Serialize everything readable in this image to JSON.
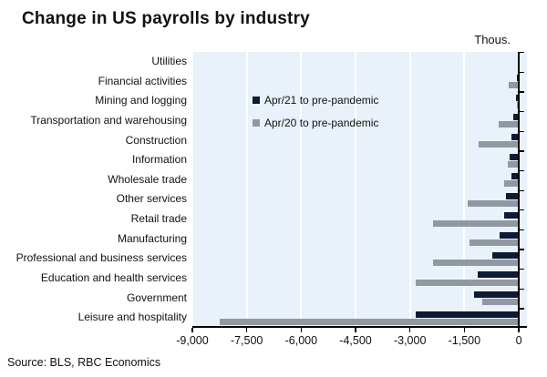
{
  "chart_data": {
    "type": "bar",
    "orientation": "horizontal",
    "title": "Change in US payrolls by industry",
    "unit_label": "Thous.",
    "source_note": "Source: BLS, RBC Economics",
    "categories": [
      "Utilities",
      "Financial activities",
      "Mining and logging",
      "Transportation and warehousing",
      "Construction",
      "Information",
      "Wholesale trade",
      "Other services",
      "Retail trade",
      "Manufacturing",
      "Professional and business services",
      "Education and health services",
      "Government",
      "Leisure and hospitality"
    ],
    "series": [
      {
        "name": "Apr/21 to pre-pandemic",
        "color": "#0c1b33",
        "values": [
          -5,
          -60,
          -75,
          -150,
          -195,
          -260,
          -210,
          -360,
          -400,
          -525,
          -730,
          -1140,
          -1240,
          -2850
        ]
      },
      {
        "name": "Apr/20 to pre-pandemic",
        "color": "#9099a2",
        "values": [
          -5,
          -270,
          -45,
          -545,
          -1100,
          -300,
          -410,
          -1400,
          -2375,
          -1360,
          -2375,
          -2850,
          -1000,
          -8245
        ]
      }
    ],
    "xlim": [
      -9000,
      225
    ],
    "xticks": [
      -9000,
      -7500,
      -6000,
      -4500,
      -3000,
      -1500,
      0
    ],
    "xtick_labels": [
      "-9,000",
      "-7,500",
      "-6,000",
      "-4,500",
      "-3,000",
      "-1,500",
      "0"
    ],
    "grid": true,
    "legend_position": "inside-top-left-of-plot",
    "colors": {
      "plot_bg": "#e9f1fa",
      "gridline": "#ffffff",
      "axis": "#000000",
      "text": "#111111"
    }
  }
}
